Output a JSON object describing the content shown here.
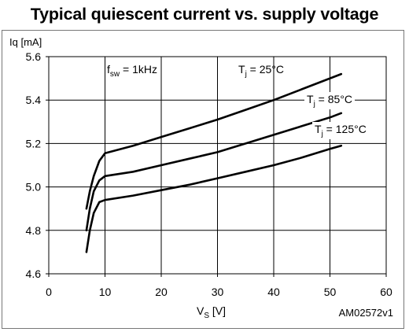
{
  "title": "Typical quiescent current vs. supply voltage",
  "chart_data": {
    "type": "line",
    "ylabel": "Iq [mA]",
    "xlabel_main": "V",
    "xlabel_sub": "S",
    "xlabel_unit": " [V]",
    "xlim": [
      0,
      60
    ],
    "ylim": [
      4.6,
      5.6
    ],
    "xticks": [
      0,
      10,
      20,
      30,
      40,
      50,
      60
    ],
    "yticks": [
      4.6,
      4.8,
      5.0,
      5.2,
      5.4,
      5.6
    ],
    "ytick_labels": [
      "4.6",
      "4.8",
      "5.0",
      "5.2",
      "5.4",
      "5.6"
    ],
    "grid": true,
    "figure_code": "AM02572v1",
    "condition": {
      "main": "f",
      "sub": "sw",
      "rest": " = 1kHz"
    },
    "series": [
      {
        "name": "25°C",
        "label_main": "T",
        "label_sub": "j",
        "label_rest": " = 25°C",
        "x": [
          6.7,
          7.3,
          8,
          9,
          10,
          15,
          20,
          25,
          30,
          35,
          40,
          45,
          50,
          52
        ],
        "y": [
          4.9,
          4.98,
          5.05,
          5.12,
          5.155,
          5.19,
          5.23,
          5.27,
          5.31,
          5.355,
          5.4,
          5.45,
          5.5,
          5.52
        ]
      },
      {
        "name": "85°C",
        "label_main": "T",
        "label_sub": "j",
        "label_rest": " = 85°C",
        "x": [
          6.7,
          7.3,
          8,
          9,
          10,
          15,
          20,
          25,
          30,
          35,
          40,
          45,
          50,
          52
        ],
        "y": [
          4.8,
          4.9,
          4.98,
          5.03,
          5.05,
          5.07,
          5.1,
          5.13,
          5.16,
          5.2,
          5.24,
          5.28,
          5.32,
          5.34
        ]
      },
      {
        "name": "125°C",
        "label_main": "T",
        "label_sub": "j",
        "label_rest": " = 125°C",
        "x": [
          6.7,
          7.3,
          8,
          9,
          10,
          15,
          20,
          25,
          30,
          35,
          40,
          45,
          50,
          52
        ],
        "y": [
          4.7,
          4.8,
          4.88,
          4.93,
          4.94,
          4.96,
          4.985,
          5.01,
          5.04,
          5.07,
          5.1,
          5.135,
          5.175,
          5.19
        ]
      }
    ]
  }
}
